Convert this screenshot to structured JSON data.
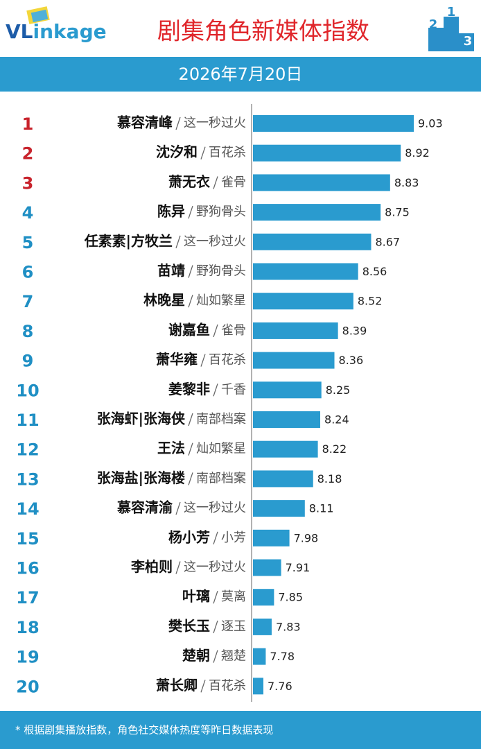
{
  "chart_data": {
    "type": "bar",
    "logo": {
      "head": "VL",
      "tail": "inkage"
    },
    "podium": [
      2,
      1,
      3
    ],
    "title": "剧集角色新媒体指数",
    "date": "2026年7月20日",
    "ranks": [
      1,
      2,
      3,
      4,
      5,
      6,
      7,
      8,
      9,
      10,
      11,
      12,
      13,
      14,
      15,
      16,
      17,
      18,
      19,
      20
    ],
    "categories": [
      "慕容清峰",
      "沈汐和",
      "萧无衣",
      "陈异",
      "任素素|方牧兰",
      "苗靖",
      "林晚星",
      "谢嘉鱼",
      "萧华雍",
      "姜黎非",
      "张海虾|张海侠",
      "王法",
      "张海盐|张海楼",
      "慕容清渝",
      "杨小芳",
      "李柏则",
      "叶璃",
      "樊长玉",
      "楚朝",
      "萧长卿"
    ],
    "dramas": [
      "这一秒过火",
      "百花杀",
      "雀骨",
      "野狗骨头",
      "这一秒过火",
      "野狗骨头",
      "灿如繁星",
      "雀骨",
      "百花杀",
      "千香",
      "南部档案",
      "灿如繁星",
      "南部档案",
      "这一秒过火",
      "小芳",
      "这一秒过火",
      "莫离",
      "逐玉",
      "翘楚",
      "百花杀"
    ],
    "values": [
      9.03,
      8.92,
      8.83,
      8.75,
      8.67,
      8.56,
      8.52,
      8.39,
      8.36,
      8.25,
      8.24,
      8.22,
      8.18,
      8.11,
      7.98,
      7.91,
      7.85,
      7.83,
      7.78,
      7.76
    ],
    "color": "#2a9bcf",
    "top_rank_color": "#c8232c",
    "rank_color": "#1f8fc4",
    "footnote": "* 根据剧集播放指数，角色社交媒体热度等昨日数据表现"
  }
}
